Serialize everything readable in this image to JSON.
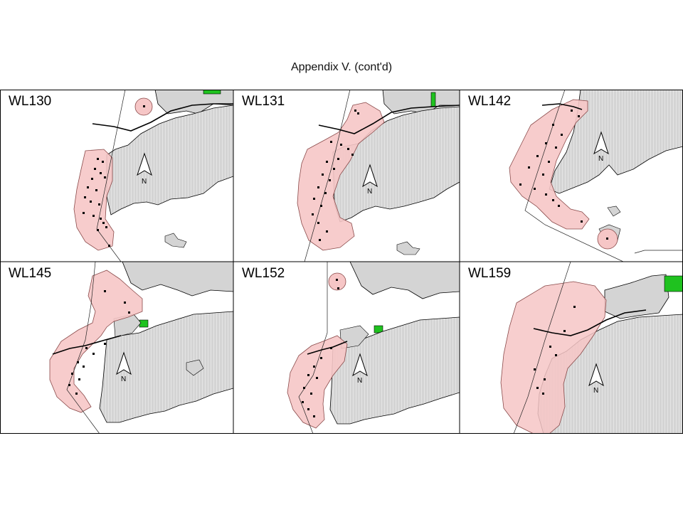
{
  "title": "Appendix V.  (cont'd)",
  "north_label": "N",
  "icons": {
    "north": "north-arrow-icon"
  },
  "colors": {
    "land": "#d4d4d4",
    "land_hatch": "#ffffff",
    "home_range": "#f6c6c6",
    "home_range_edge": "#8a4a4a",
    "protected_area": "#1fc21f",
    "outline": "#000000",
    "location": "#000000"
  },
  "panels": [
    {
      "id": "WL130"
    },
    {
      "id": "WL131"
    },
    {
      "id": "WL142"
    },
    {
      "id": "WL145"
    },
    {
      "id": "WL152"
    },
    {
      "id": "WL159"
    }
  ]
}
